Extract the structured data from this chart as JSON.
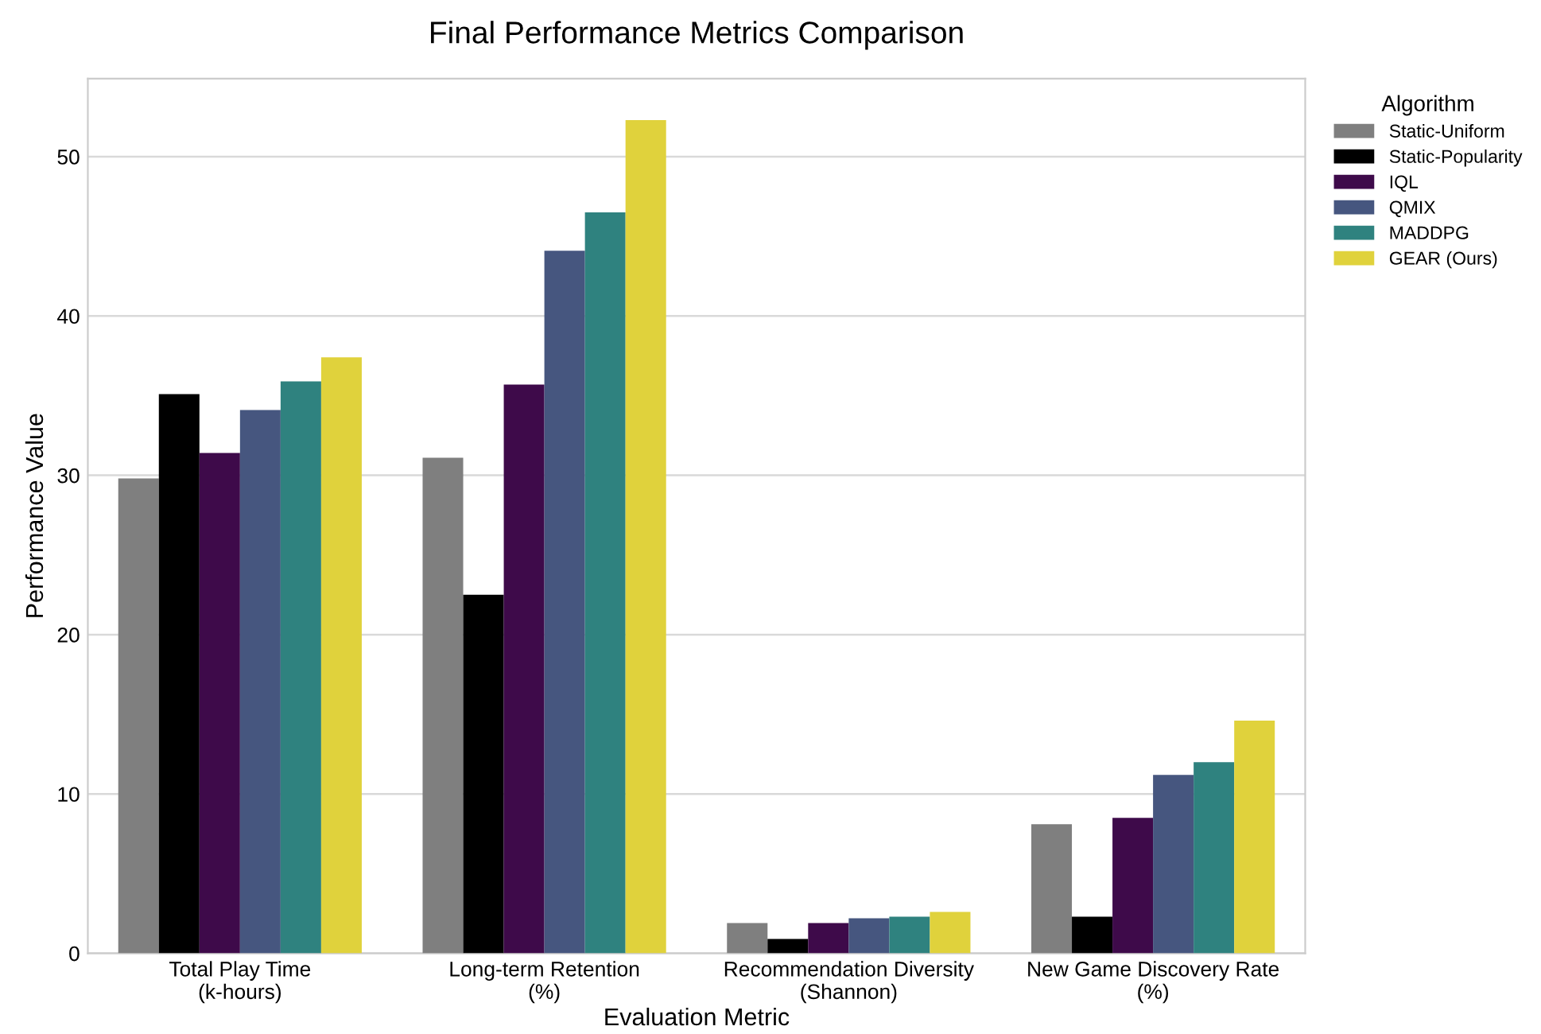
{
  "chart_data": {
    "type": "bar",
    "title": "Final Performance Metrics Comparison",
    "xlabel": "Evaluation Metric",
    "ylabel": "Performance Value",
    "legend_title": "Algorithm",
    "categories": [
      "Total Play Time\n(k-hours)",
      "Long-term Retention\n(%)",
      "Recommendation Diversity\n(Shannon)",
      "New Game Discovery Rate\n(%)"
    ],
    "series": [
      {
        "name": "Static-Uniform",
        "color": "#7f7f7f",
        "values": [
          29.8,
          31.1,
          1.9,
          8.1
        ]
      },
      {
        "name": "Static-Popularity",
        "color": "#000000",
        "values": [
          35.1,
          22.5,
          0.9,
          2.3
        ]
      },
      {
        "name": "IQL",
        "color": "#3e0a4a",
        "values": [
          31.4,
          35.7,
          1.9,
          8.5
        ]
      },
      {
        "name": "QMIX",
        "color": "#46567f",
        "values": [
          34.1,
          44.1,
          2.2,
          11.2
        ]
      },
      {
        "name": "MADDPG",
        "color": "#2f827f",
        "values": [
          35.9,
          46.5,
          2.3,
          12.0
        ]
      },
      {
        "name": "GEAR (Ours)",
        "color": "#e0d23c",
        "values": [
          37.4,
          52.3,
          2.6,
          14.6
        ]
      }
    ],
    "ylim": [
      0,
      54.9
    ],
    "yticks": [
      0,
      10,
      20,
      30,
      40,
      50
    ],
    "grid": "y",
    "legend": "top right"
  }
}
